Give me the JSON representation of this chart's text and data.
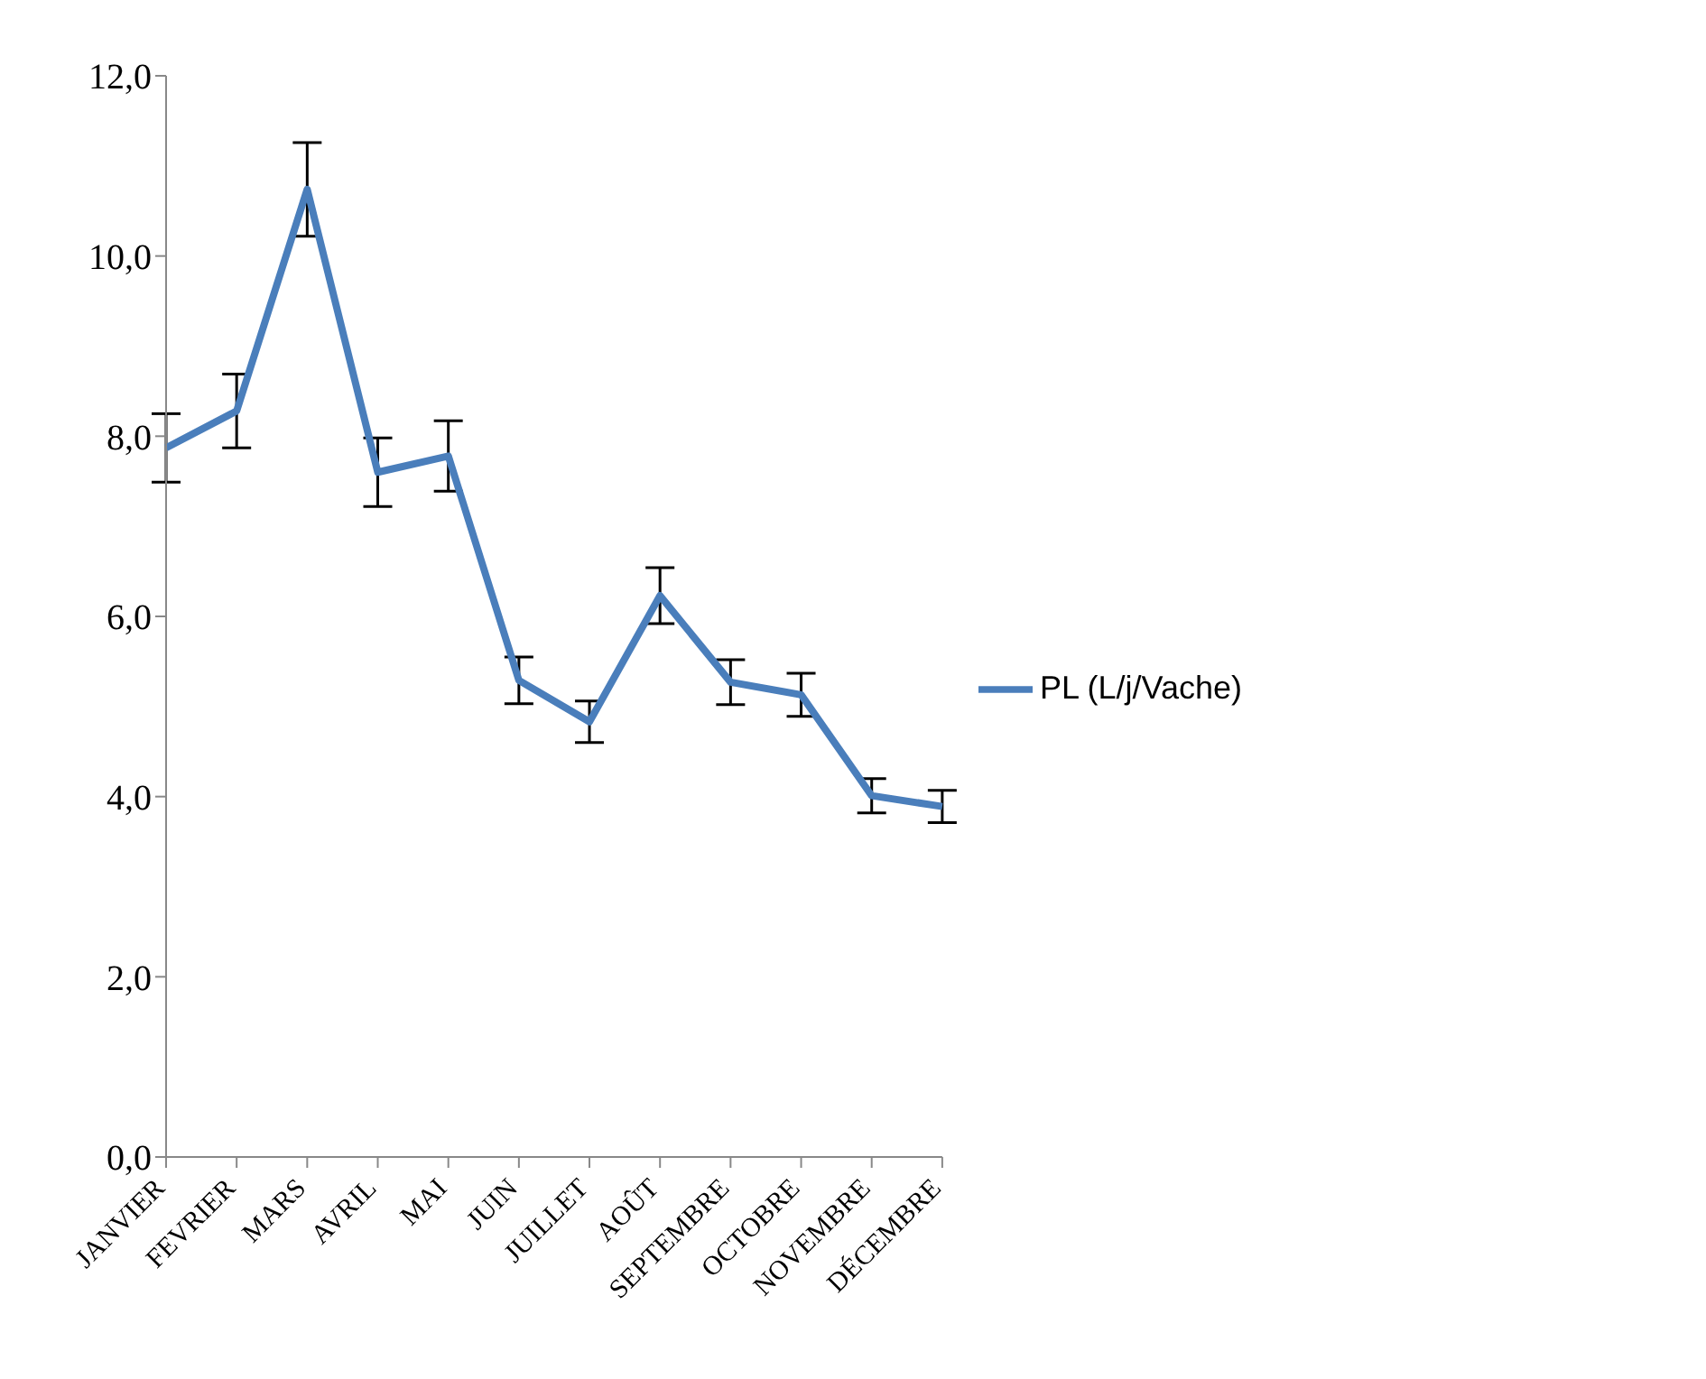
{
  "chart_data": {
    "type": "line",
    "categories": [
      "JANVIER",
      "FEVRIER",
      "MARS",
      "AVRIL",
      "MAI",
      "JUIN",
      "JUILLET",
      "AOÛT",
      "SEPTEMBRE",
      "OCTOBRE",
      "NOVEMBRE",
      "DÉCEMBRE"
    ],
    "series": [
      {
        "name": "PL (L/j/Vache)",
        "color": "#4a7ebb",
        "values": [
          7.87,
          8.28,
          10.74,
          7.6,
          7.78,
          5.29,
          4.83,
          6.23,
          5.27,
          5.13,
          4.01,
          3.89
        ],
        "errors": [
          0.38,
          0.41,
          0.52,
          0.38,
          0.39,
          0.26,
          0.23,
          0.31,
          0.25,
          0.24,
          0.19,
          0.18
        ]
      }
    ],
    "ylim": [
      0,
      12
    ],
    "yticks": [
      {
        "value": 0,
        "label": "0,0"
      },
      {
        "value": 2,
        "label": "2,0"
      },
      {
        "value": 4,
        "label": "4,0"
      },
      {
        "value": 6,
        "label": "6,0"
      },
      {
        "value": 8,
        "label": "8,0"
      },
      {
        "value": 10,
        "label": "10,0"
      },
      {
        "value": 12,
        "label": "12,0"
      }
    ],
    "grid": false,
    "legend": "right",
    "marker": "none",
    "line_style": "solid"
  }
}
